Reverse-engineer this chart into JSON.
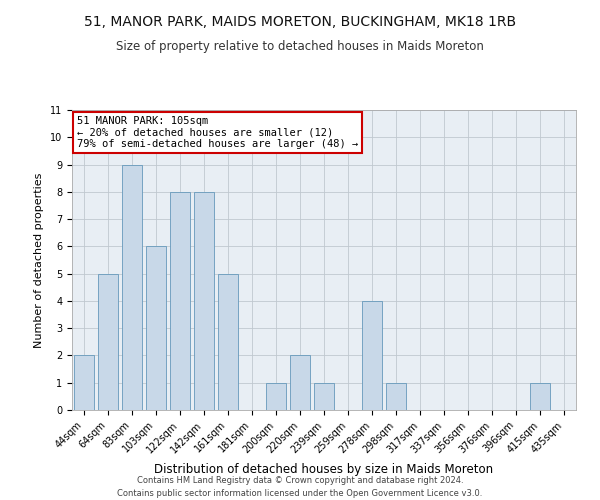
{
  "title": "51, MANOR PARK, MAIDS MORETON, BUCKINGHAM, MK18 1RB",
  "subtitle": "Size of property relative to detached houses in Maids Moreton",
  "xlabel": "Distribution of detached houses by size in Maids Moreton",
  "ylabel": "Number of detached properties",
  "categories": [
    "44sqm",
    "64sqm",
    "83sqm",
    "103sqm",
    "122sqm",
    "142sqm",
    "161sqm",
    "181sqm",
    "200sqm",
    "220sqm",
    "239sqm",
    "259sqm",
    "278sqm",
    "298sqm",
    "317sqm",
    "337sqm",
    "356sqm",
    "376sqm",
    "396sqm",
    "415sqm",
    "435sqm"
  ],
  "values": [
    2,
    5,
    9,
    6,
    8,
    8,
    5,
    0,
    1,
    2,
    1,
    0,
    4,
    1,
    0,
    0,
    0,
    0,
    0,
    1,
    0
  ],
  "bar_color": "#c8d8e8",
  "bar_edge_color": "#6699bb",
  "ylim": [
    0,
    11
  ],
  "yticks": [
    0,
    1,
    2,
    3,
    4,
    5,
    6,
    7,
    8,
    9,
    10,
    11
  ],
  "annotation_text": "51 MANOR PARK: 105sqm\n← 20% of detached houses are smaller (12)\n79% of semi-detached houses are larger (48) →",
  "annotation_box_color": "#ffffff",
  "annotation_box_edge_color": "#cc0000",
  "footer1": "Contains HM Land Registry data © Crown copyright and database right 2024.",
  "footer2": "Contains public sector information licensed under the Open Government Licence v3.0.",
  "background_color": "#e8eef4",
  "grid_color": "#c0c8d0",
  "title_fontsize": 10,
  "subtitle_fontsize": 8.5,
  "xlabel_fontsize": 8.5,
  "ylabel_fontsize": 8,
  "tick_fontsize": 7,
  "annotation_fontsize": 7.5,
  "footer_fontsize": 6
}
